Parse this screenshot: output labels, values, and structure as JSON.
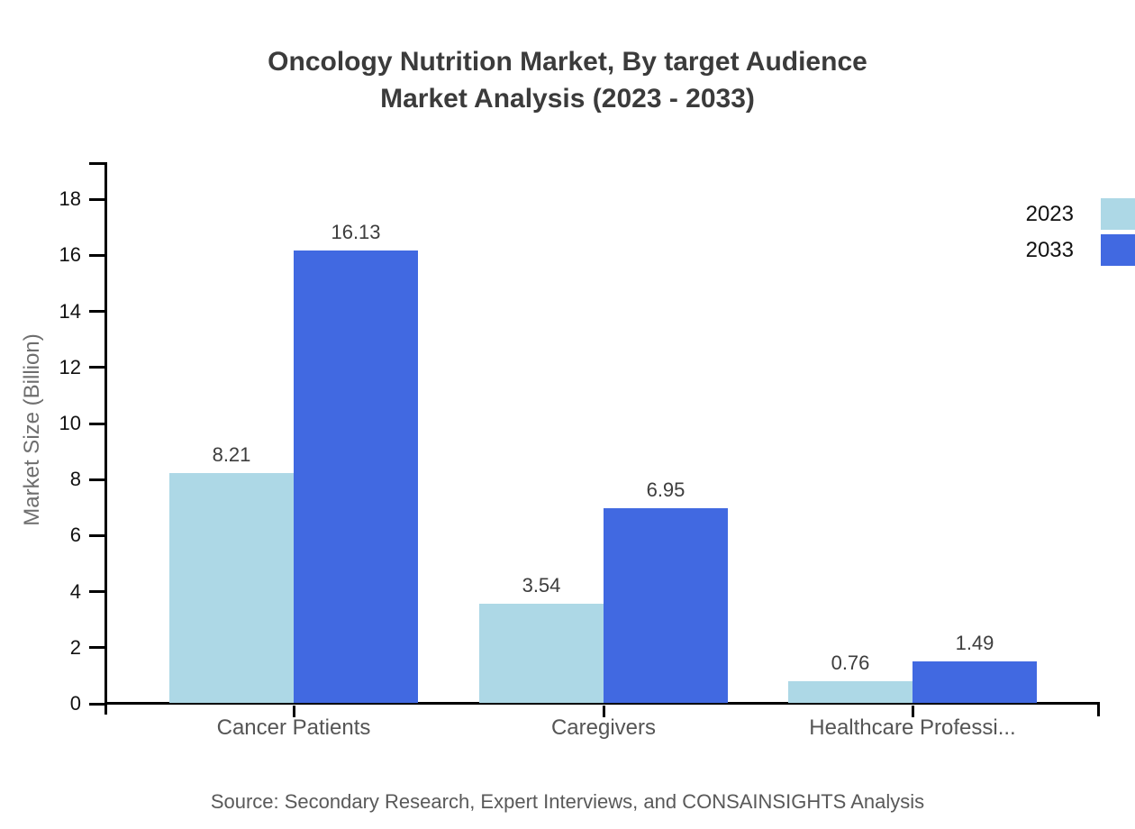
{
  "title": {
    "line1": "Oncology Nutrition Market, By target Audience",
    "line2": "Market Analysis (2023 - 2033)"
  },
  "chart_data": {
    "type": "bar",
    "categories": [
      "Cancer Patients",
      "Caregivers",
      "Healthcare Professi..."
    ],
    "series": [
      {
        "name": "2023",
        "color": "#add8e6",
        "values": [
          8.21,
          3.54,
          0.76
        ]
      },
      {
        "name": "2033",
        "color": "#4169e1",
        "values": [
          16.13,
          6.95,
          1.49
        ]
      }
    ],
    "title": "Oncology Nutrition Market, By target Audience Market Analysis (2023 - 2033)",
    "xlabel": "",
    "ylabel": "Market Size (Billion)",
    "ylim": [
      0,
      19
    ],
    "yticks": [
      0,
      2,
      4,
      6,
      8,
      10,
      12,
      14,
      16,
      18
    ],
    "grid": false,
    "legend_position": "top-right",
    "value_labels": [
      "8.21",
      "16.13",
      "3.54",
      "6.95",
      "0.76",
      "1.49"
    ]
  },
  "source": {
    "text": "Source: Secondary Research, Expert Interviews, and CONSAINSIGHTS Analysis"
  },
  "colors": {
    "axis": "#000000",
    "title_text": "#3b3b3b",
    "tick_text": "#111111",
    "category_text": "#555555",
    "value_text": "#3d3d3d",
    "ylabel_text": "#6e6e6e",
    "source_text": "#595959",
    "background": "#ffffff"
  }
}
